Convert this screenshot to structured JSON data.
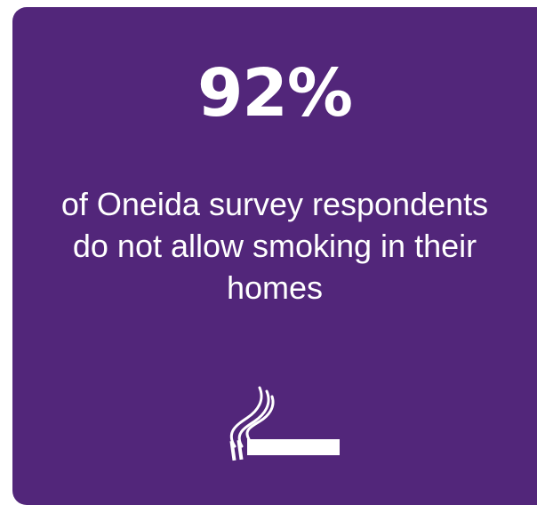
{
  "infographic": {
    "statistic": "92%",
    "description": "of Oneida survey respondents do not allow smoking in their homes",
    "icon": "cigarette-smoke-icon",
    "colors": {
      "background": "#52267a",
      "text": "#ffffff"
    }
  }
}
